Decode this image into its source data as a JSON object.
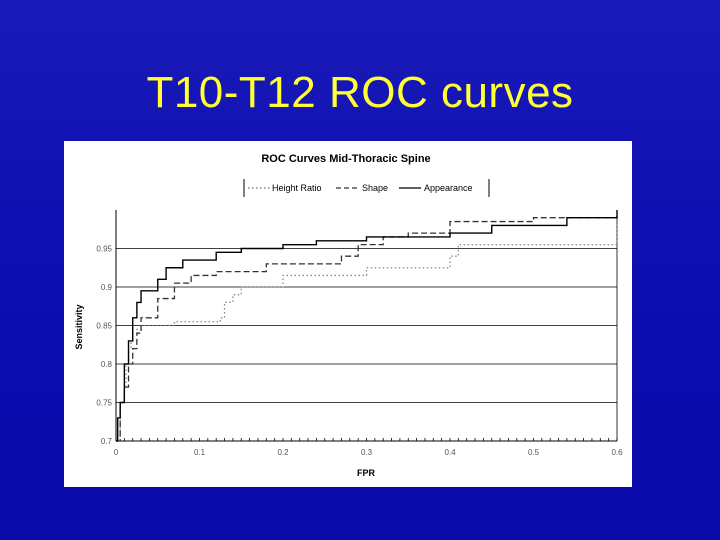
{
  "slide": {
    "title": "T10-T12 ROC curves"
  },
  "chart_data": {
    "type": "line",
    "title": "ROC Curves Mid-Thoracic Spine",
    "xlabel": "FPR",
    "ylabel": "Sensitivity",
    "xlim": [
      0,
      0.6
    ],
    "ylim": [
      0.7,
      1.0
    ],
    "xticks": [
      0,
      0.1,
      0.2,
      0.3,
      0.4,
      0.5,
      0.6
    ],
    "xtick_labels": [
      "0",
      "0.1",
      "0.2",
      "0.3",
      "0.4",
      "0.5",
      "0.6"
    ],
    "yticks": [
      0.7,
      0.75,
      0.8,
      0.85,
      0.9,
      0.95
    ],
    "ytick_labels": [
      "0.7",
      "0.75",
      "0.8",
      "0.85",
      "0.9",
      "0.95"
    ],
    "grid": "horizontal",
    "legend_position": "top",
    "series": [
      {
        "name": "Height Ratio",
        "style": "dotted",
        "color": "#888888",
        "x": [
          0,
          0.005,
          0.01,
          0.012,
          0.015,
          0.018,
          0.02,
          0.025,
          0.03,
          0.07,
          0.12,
          0.125,
          0.13,
          0.14,
          0.15,
          0.2,
          0.3,
          0.4,
          0.41,
          0.6
        ],
        "y": [
          0.7,
          0.75,
          0.77,
          0.8,
          0.82,
          0.83,
          0.84,
          0.845,
          0.85,
          0.855,
          0.855,
          0.86,
          0.88,
          0.89,
          0.9,
          0.915,
          0.925,
          0.94,
          0.955,
          0.985
        ]
      },
      {
        "name": "Shape",
        "style": "dashed",
        "color": "#333333",
        "x": [
          0,
          0.005,
          0.01,
          0.015,
          0.02,
          0.025,
          0.03,
          0.05,
          0.07,
          0.09,
          0.12,
          0.18,
          0.24,
          0.27,
          0.29,
          0.32,
          0.35,
          0.4,
          0.5,
          0.6
        ],
        "y": [
          0.7,
          0.75,
          0.77,
          0.8,
          0.82,
          0.84,
          0.86,
          0.885,
          0.905,
          0.915,
          0.92,
          0.93,
          0.93,
          0.94,
          0.955,
          0.965,
          0.97,
          0.985,
          0.99,
          0.995
        ]
      },
      {
        "name": "Appearance",
        "style": "solid",
        "color": "#000000",
        "x": [
          0,
          0.002,
          0.005,
          0.01,
          0.015,
          0.02,
          0.025,
          0.03,
          0.05,
          0.06,
          0.08,
          0.12,
          0.15,
          0.2,
          0.24,
          0.3,
          0.4,
          0.45,
          0.54,
          0.6
        ],
        "y": [
          0.7,
          0.73,
          0.75,
          0.8,
          0.83,
          0.86,
          0.88,
          0.895,
          0.91,
          0.925,
          0.935,
          0.945,
          0.95,
          0.955,
          0.96,
          0.965,
          0.97,
          0.98,
          0.99,
          1.0
        ]
      }
    ]
  }
}
